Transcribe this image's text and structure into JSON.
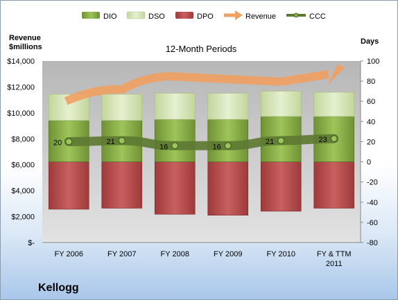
{
  "company": "Kellogg",
  "colors": {
    "dio": "#8cb04a",
    "dso": "#d6e5b5",
    "dpo": "#b84a4a",
    "revenue": "#f0a060",
    "ccc": "#5e7a32",
    "plot_bg": "#c8c8c8"
  },
  "chart_data": {
    "type": "bar",
    "title": "12-Month Periods",
    "ylabel_left": "Revenue $millions",
    "ylabel_right": "Days",
    "ylim_left": [
      0,
      14000
    ],
    "ylim_right": [
      -80,
      100
    ],
    "left_ticks": [
      "$-",
      "$2,000",
      "$4,000",
      "$6,000",
      "$8,000",
      "$10,000",
      "$12,000",
      "$14,000"
    ],
    "right_ticks": [
      "-80",
      "-60",
      "-40",
      "-20",
      "0",
      "20",
      "40",
      "60",
      "80",
      "100"
    ],
    "categories": [
      "FY 2006",
      "FY 2007",
      "FY 2008",
      "FY 2009",
      "FY 2010",
      "FY & TTM 2011"
    ],
    "legend_position": "top",
    "series": [
      {
        "name": "DIO",
        "type": "stacked-bar",
        "axis": "right",
        "values": [
          41,
          41,
          42,
          42,
          45,
          45
        ]
      },
      {
        "name": "DSO",
        "type": "stacked-bar",
        "axis": "right",
        "values": [
          26,
          26,
          26,
          26,
          25,
          24
        ]
      },
      {
        "name": "DPO",
        "type": "stacked-bar",
        "axis": "right",
        "values": [
          -47,
          -46,
          -52,
          -53,
          -49,
          -46
        ]
      },
      {
        "name": "Revenue",
        "type": "arrow",
        "axis": "left",
        "values": [
          10900,
          11800,
          12800,
          12600,
          12400,
          13300
        ]
      },
      {
        "name": "CCC",
        "type": "line",
        "axis": "right",
        "values": [
          20,
          21,
          16,
          16,
          21,
          23
        ],
        "labels": [
          "20",
          "21",
          "16",
          "16",
          "21",
          "23"
        ]
      }
    ],
    "grid": false
  }
}
